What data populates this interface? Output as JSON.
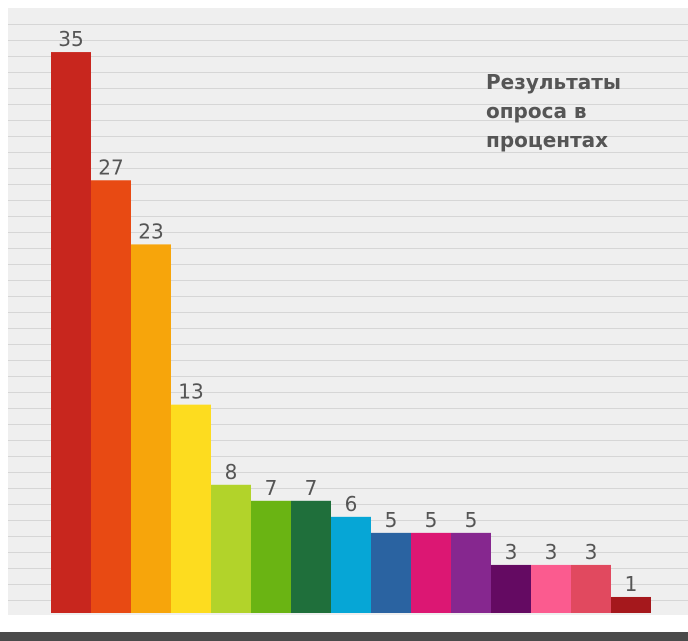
{
  "chart_data": {
    "type": "bar",
    "title": "Результаты опроса в процентах",
    "categories": [],
    "values": [
      35,
      27,
      23,
      13,
      8,
      7,
      7,
      6,
      5,
      5,
      5,
      3,
      3,
      3,
      1
    ],
    "labels": [
      "35",
      "27",
      "23",
      "13",
      "8",
      "7",
      "7",
      "6",
      "5",
      "5",
      "5",
      "3",
      "3",
      "3",
      "1"
    ],
    "colors": [
      "#c8261e",
      "#e84a13",
      "#f7a50b",
      "#fddc1f",
      "#b2d32a",
      "#6ab413",
      "#1f6f3b",
      "#06a6d6",
      "#2a63a1",
      "#dc1773",
      "#86278f",
      "#640a62",
      "#fb5b8f",
      "#e1495f",
      "#a5181c"
    ],
    "ylim": [
      0,
      37.75
    ],
    "grid": true,
    "xlabel": "",
    "ylabel": ""
  }
}
